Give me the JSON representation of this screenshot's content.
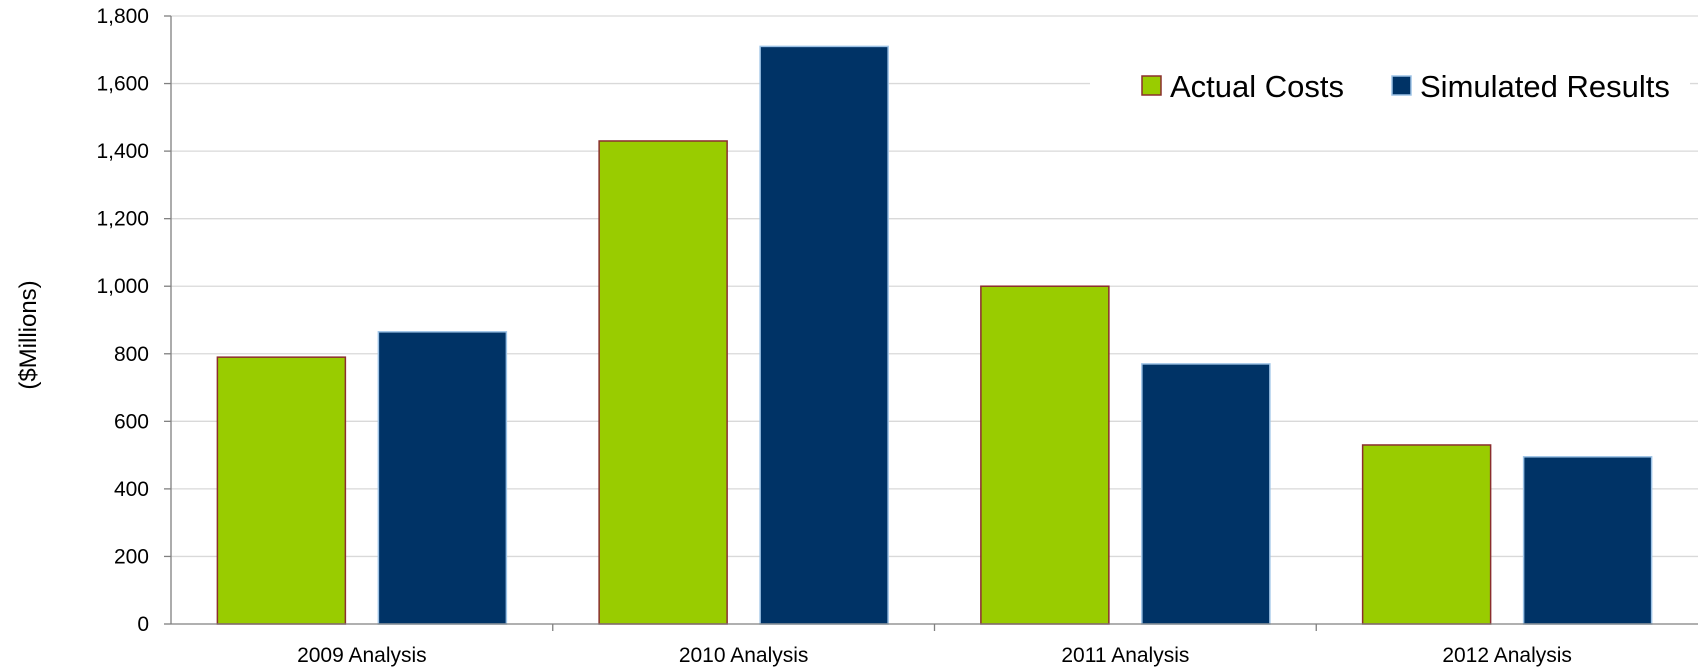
{
  "chart_data": {
    "type": "bar",
    "title": "",
    "xlabel": "",
    "ylabel": "($Millions)",
    "categories": [
      "2009 Analysis",
      "2010 Analysis",
      "2011 Analysis",
      "2012 Analysis"
    ],
    "series": [
      {
        "name": "Actual Costs",
        "values": [
          790,
          1430,
          1000,
          530
        ],
        "color": "#99cc00",
        "border": "#8b2e2e"
      },
      {
        "name": "Simulated Results",
        "values": [
          865,
          1710,
          770,
          495
        ],
        "color": "#003366",
        "border": "#9dc3e6"
      }
    ],
    "ylim": [
      0,
      1800
    ],
    "yticks": [
      0,
      200,
      400,
      600,
      800,
      1000,
      1200,
      1400,
      1600,
      1800
    ],
    "ytick_labels": [
      "0",
      "200",
      "400",
      "600",
      "800",
      "1,000",
      "1,200",
      "1,400",
      "1,600",
      "1,800"
    ],
    "grid": true,
    "legend_position": "top-right"
  }
}
